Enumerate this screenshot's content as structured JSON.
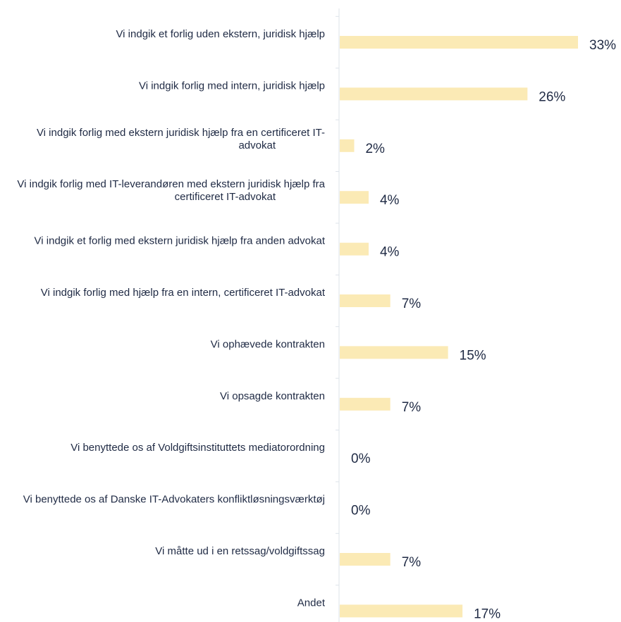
{
  "chart_data": {
    "type": "bar",
    "orientation": "horizontal",
    "categories": [
      [
        "Vi indgik et forlig uden ekstern, juridisk hjælp"
      ],
      [
        "Vi indgik forlig med intern, juridisk hjælp"
      ],
      [
        "Vi indgik forlig med ekstern juridisk hjælp fra en certificeret IT-",
        "advokat"
      ],
      [
        "Vi indgik forlig med IT-leverandøren med ekstern juridisk hjælp fra",
        "certificeret IT-advokat"
      ],
      [
        "Vi indgik et forlig med ekstern juridisk hjælp fra anden advokat"
      ],
      [
        "Vi indgik forlig med hjælp fra en intern, certificeret IT-advokat"
      ],
      [
        "Vi ophævede kontrakten"
      ],
      [
        "Vi opsagde kontrakten"
      ],
      [
        "Vi benyttede os af Voldgiftsinstituttets mediatorordning"
      ],
      [
        "Vi benyttede os af Danske IT-Advokaters konfliktløsningsværktøj"
      ],
      [
        "Vi måtte ud i en retssag/voldgiftssag"
      ],
      [
        "Andet"
      ]
    ],
    "values": [
      33,
      26,
      2,
      4,
      4,
      7,
      15,
      7,
      0,
      0,
      7,
      17
    ],
    "value_labels": [
      "33%",
      "26%",
      "2%",
      "4%",
      "4%",
      "7%",
      "15%",
      "7%",
      "0%",
      "0%",
      "7%",
      "17%"
    ],
    "unit": "%",
    "xlim": [
      0,
      33
    ],
    "grid": false,
    "colors": {
      "bar": "#fbeab5",
      "text": "#1f2a44",
      "axis": "#dde3ea"
    }
  }
}
